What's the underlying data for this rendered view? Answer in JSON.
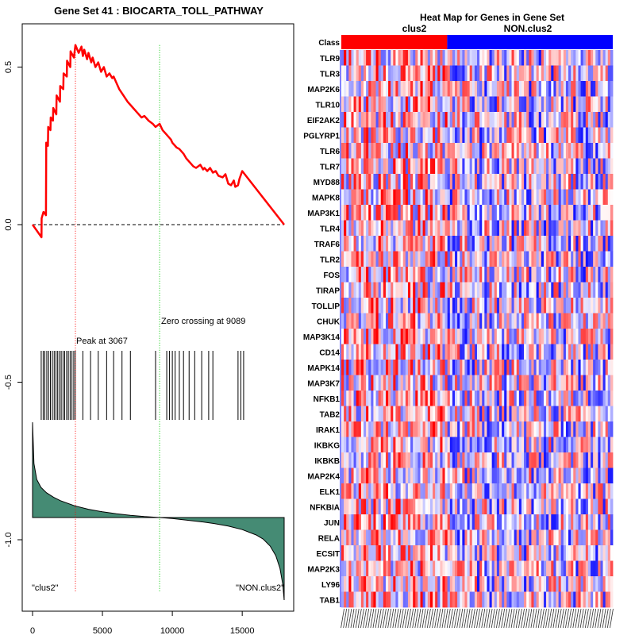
{
  "chart_data": [
    {
      "type": "line",
      "title": "Gene Set  41 : BIOCARTA_TOLL_PATHWAY",
      "xlim": [
        0,
        18000
      ],
      "ylim": [
        -1.22,
        0.68
      ],
      "xticks": [
        0,
        5000,
        10000,
        15000
      ],
      "xtick_labels": [
        "0",
        "5000",
        "10000",
        "15000"
      ],
      "yticks": [
        0.5,
        0.0,
        -0.5,
        -1.0
      ],
      "ytick_labels": [
        "0.5",
        "0.0",
        "-0.5",
        "-1.0"
      ],
      "series": [
        {
          "name": "running enrichment score",
          "color": "#ff0000",
          "x": [
            0,
            640,
            650,
            780,
            800,
            960,
            980,
            1100,
            1120,
            1280,
            1300,
            1460,
            1480,
            1700,
            1720,
            1960,
            1980,
            2200,
            2220,
            2450,
            2470,
            2700,
            2720,
            2960,
            3067,
            3300,
            3500,
            3600,
            3700,
            3900,
            4000,
            4200,
            4300,
            4500,
            4700,
            4900,
            5100,
            5300,
            5500,
            5700,
            5800,
            6000,
            6200,
            6500,
            6800,
            7000,
            7200,
            7500,
            7800,
            8000,
            8300,
            8600,
            8800,
            9089,
            9300,
            9600,
            9900,
            10000,
            10200,
            10300,
            10500,
            10800,
            11000,
            11200,
            11500,
            11700,
            12000,
            12200,
            12300,
            12500,
            12700,
            12900,
            13100,
            13300,
            13600,
            13800,
            14000,
            14200,
            14400,
            14500,
            14700,
            14800,
            15000,
            18000
          ],
          "y": [
            0.0,
            -0.04,
            0.02,
            0.04,
            0.04,
            0.03,
            0.26,
            0.25,
            0.31,
            0.3,
            0.34,
            0.33,
            0.37,
            0.35,
            0.41,
            0.39,
            0.44,
            0.43,
            0.48,
            0.47,
            0.52,
            0.5,
            0.55,
            0.53,
            0.57,
            0.545,
            0.565,
            0.535,
            0.555,
            0.525,
            0.545,
            0.515,
            0.53,
            0.5,
            0.515,
            0.485,
            0.5,
            0.47,
            0.48,
            0.465,
            0.47,
            0.45,
            0.43,
            0.41,
            0.39,
            0.38,
            0.37,
            0.355,
            0.34,
            0.345,
            0.33,
            0.32,
            0.31,
            0.32,
            0.3,
            0.285,
            0.27,
            0.26,
            0.25,
            0.245,
            0.24,
            0.225,
            0.21,
            0.2,
            0.185,
            0.18,
            0.19,
            0.175,
            0.18,
            0.17,
            0.18,
            0.165,
            0.17,
            0.155,
            0.15,
            0.16,
            0.13,
            0.125,
            0.14,
            0.12,
            0.125,
            0.145,
            0.17,
            0.0
          ]
        }
      ],
      "hits": [
        620,
        760,
        880,
        1020,
        1150,
        1280,
        1420,
        1550,
        1680,
        1800,
        1930,
        2050,
        2180,
        2300,
        2440,
        2560,
        2690,
        2820,
        2950,
        3060,
        3600,
        4150,
        4700,
        5300,
        5800,
        6400,
        7000,
        8800,
        9600,
        9800,
        10000,
        10200,
        10500,
        10800,
        11200,
        11600,
        12100,
        12600,
        12900,
        14700,
        14900,
        15100
      ],
      "ranked_metric": {
        "color": "#458b74",
        "x": [
          0,
          100,
          300,
          600,
          1000,
          1500,
          2000,
          3000,
          4000,
          5000,
          6000,
          7000,
          8000,
          9089,
          10000,
          11000,
          12000,
          13000,
          14000,
          15000,
          16000,
          16500,
          17000,
          17400,
          17700,
          17900,
          18000
        ],
        "y": [
          0.3,
          0.17,
          0.12,
          0.095,
          0.078,
          0.064,
          0.053,
          0.037,
          0.026,
          0.018,
          0.012,
          0.007,
          0.003,
          0.0,
          -0.003,
          -0.008,
          -0.013,
          -0.019,
          -0.027,
          -0.038,
          -0.055,
          -0.068,
          -0.09,
          -0.12,
          -0.16,
          -0.21,
          -0.26
        ]
      },
      "peak_x": 3067,
      "zero_crossing_x": 9089,
      "annotations": {
        "peak": "Peak at 3067",
        "zero": "Zero crossing at 9089",
        "left": "\"clus2\"",
        "right": "\"NON.clus2\""
      }
    },
    {
      "type": "heatmap",
      "title": "Heat Map for Genes in Gene Set",
      "class_label": "Class",
      "groups": [
        {
          "name": "clus2",
          "color": "#ff0000",
          "fraction": 0.39
        },
        {
          "name": "NON.clus2",
          "color": "#0000ff",
          "fraction": 0.61
        }
      ],
      "rows": [
        "TLR9",
        "TLR3",
        "MAP2K6",
        "TLR10",
        "EIF2AK2",
        "PGLYRP1",
        "TLR6",
        "TLR7",
        "MYD88",
        "MAPK8",
        "MAP3K1",
        "TLR4",
        "TRAF6",
        "TLR2",
        "FOS",
        "TIRAP",
        "TOLLIP",
        "CHUK",
        "MAP3K14",
        "CD14",
        "MAPK14",
        "MAP3K7",
        "NFKB1",
        "TAB2",
        "IRAK1",
        "IKBKG",
        "IKBKB",
        "MAP2K4",
        "ELK1",
        "NFKBIA",
        "JUN",
        "RELA",
        "ECSIT",
        "MAP2K3",
        "LY96",
        "TAB1"
      ],
      "n_samples": 110,
      "colors": {
        "low": "#0000ff",
        "mid": "#ffffff",
        "high": "#ff0000"
      }
    }
  ]
}
